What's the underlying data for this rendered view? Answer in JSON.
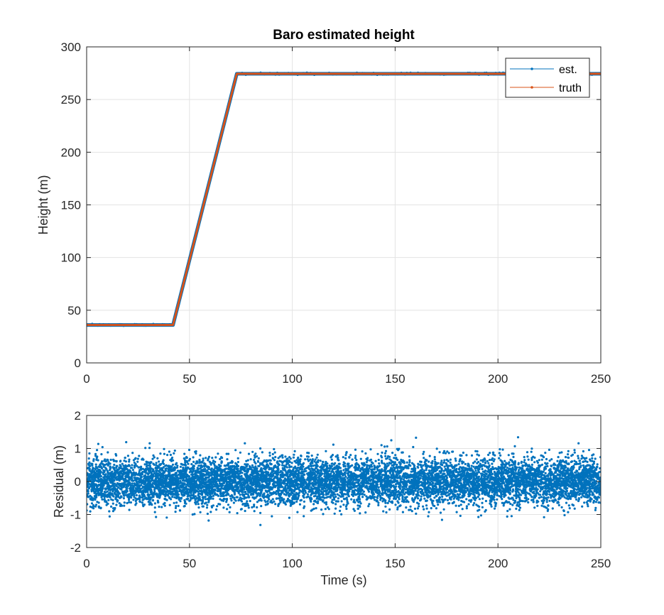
{
  "chart_data": [
    {
      "type": "line",
      "title": "Baro estimated height",
      "xlabel": "",
      "ylabel": "Height (m)",
      "xlim": [
        0,
        250
      ],
      "ylim": [
        0,
        300
      ],
      "xticks": [
        0,
        50,
        100,
        150,
        200,
        250
      ],
      "yticks": [
        0,
        50,
        100,
        150,
        200,
        250,
        300
      ],
      "grid": true,
      "legend_position": "top-right",
      "series": [
        {
          "name": "est.",
          "color": "#0072BD",
          "marker": "dot",
          "x": [
            0,
            42,
            73,
            250
          ],
          "y": [
            36,
            36,
            274.5,
            274.5
          ]
        },
        {
          "name": "truth",
          "color": "#D95319",
          "marker": "dot",
          "x": [
            0,
            42,
            73,
            250
          ],
          "y": [
            36,
            36,
            274.5,
            274.5
          ]
        }
      ]
    },
    {
      "type": "scatter",
      "title": "",
      "xlabel": "Time (s)",
      "ylabel": "Residual (m)",
      "xlim": [
        0,
        250
      ],
      "ylim": [
        -2,
        2
      ],
      "xticks": [
        0,
        50,
        100,
        150,
        200,
        250
      ],
      "yticks": [
        -2,
        -1,
        0,
        1,
        2
      ],
      "grid": true,
      "series": [
        {
          "name": "",
          "color": "#0072BD",
          "description_values": {
            "x_range": [
              0,
              250
            ],
            "mean": 0,
            "std": 0.35,
            "min": -1.75,
            "max": 1.5
          }
        }
      ]
    }
  ]
}
